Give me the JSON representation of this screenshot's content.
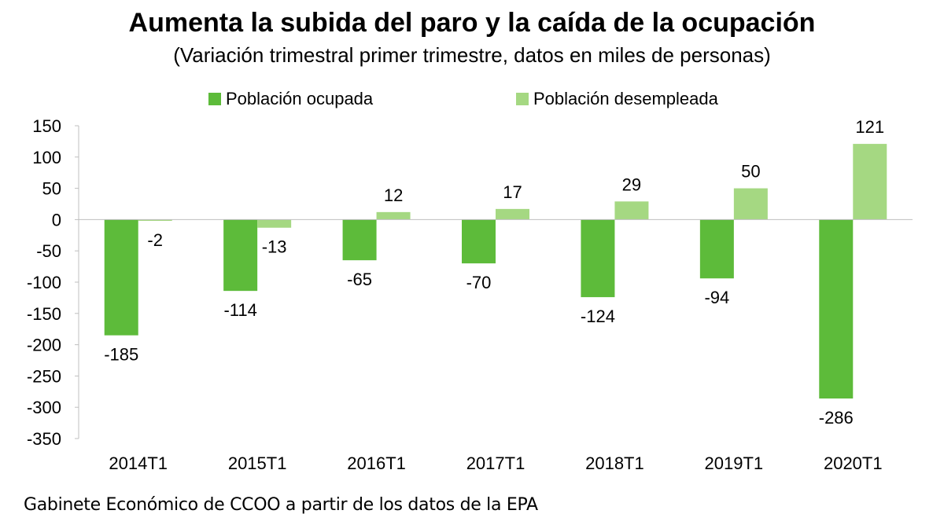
{
  "chart_data": {
    "type": "bar",
    "title": "Aumenta la subida del paro y la caída de la ocupación",
    "subtitle": "(Variación trimestral primer trimestre, datos en miles de personas)",
    "categories": [
      "2014T1",
      "2015T1",
      "2016T1",
      "2017T1",
      "2018T1",
      "2019T1",
      "2020T1"
    ],
    "series": [
      {
        "name": "Población ocupada",
        "color": "#5dbb3a",
        "values": [
          -185,
          -114,
          -65,
          -70,
          -124,
          -94,
          -286
        ]
      },
      {
        "name": "Población desempleada",
        "color": "#a5d882",
        "values": [
          -2,
          -13,
          12,
          17,
          29,
          50,
          121
        ]
      }
    ],
    "ylim": [
      -350,
      150
    ],
    "yticks": [
      "150",
      "100",
      "50",
      "0",
      "-50",
      "-100",
      "-150",
      "-200",
      "-250",
      "-300",
      "-350"
    ],
    "grid": false,
    "legend": "top",
    "data_labels": true
  },
  "source": "Gabinete Económico de CCOO a partir de los datos de la EPA"
}
